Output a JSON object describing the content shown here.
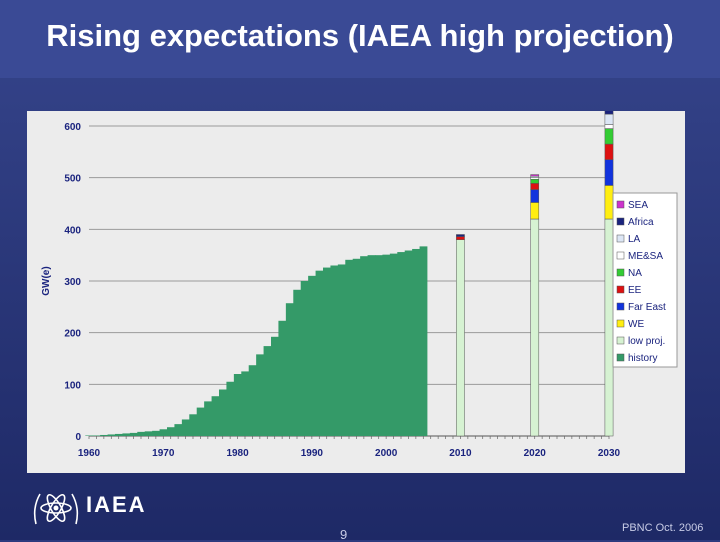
{
  "slide": {
    "title": "Rising expectations (IAEA high projection)",
    "logo_text": "IAEA",
    "page_number": "9",
    "footer_note": "PBNC Oct. 2006"
  },
  "colors": {
    "background": "#2c3a7e",
    "panel": "#ececec",
    "history": "#349a68",
    "low_proj": "#d6f2d2"
  },
  "chart_data": {
    "type": "bar",
    "title": "",
    "xlabel": "",
    "ylabel": "GW(e)",
    "xlim": [
      1960,
      2030
    ],
    "ylim": [
      0,
      600
    ],
    "yticks": [
      0,
      100,
      200,
      300,
      400,
      500,
      600
    ],
    "xticks": [
      1960,
      1970,
      1980,
      1990,
      2000,
      2010,
      2020,
      2030
    ],
    "grid": true,
    "legend_position": "right",
    "history": {
      "name": "history",
      "color": "#349a68",
      "years": [
        1960,
        1961,
        1962,
        1963,
        1964,
        1965,
        1966,
        1967,
        1968,
        1969,
        1970,
        1971,
        1972,
        1973,
        1974,
        1975,
        1976,
        1977,
        1978,
        1979,
        1980,
        1981,
        1982,
        1983,
        1984,
        1985,
        1986,
        1987,
        1988,
        1989,
        1990,
        1991,
        1992,
        1993,
        1994,
        1995,
        1996,
        1997,
        1998,
        1999,
        2000,
        2001,
        2002,
        2003,
        2004,
        2005
      ],
      "values": [
        1,
        1,
        2,
        3,
        4,
        5,
        6,
        8,
        9,
        10,
        13,
        17,
        23,
        32,
        42,
        55,
        67,
        77,
        90,
        105,
        120,
        125,
        137,
        158,
        174,
        192,
        223,
        257,
        283,
        300,
        310,
        320,
        326,
        330,
        332,
        341,
        343,
        348,
        350,
        350,
        351,
        353,
        356,
        359,
        362,
        367
      ]
    },
    "projection_years": [
      2010,
      2020,
      2030
    ],
    "stack_order": [
      "history",
      "low proj.",
      "WE",
      "Far East",
      "EE",
      "NA",
      "ME&SA",
      "LA",
      "Africa",
      "SEA"
    ],
    "projections": [
      {
        "year": 2010,
        "segments": {
          "history": 0,
          "low proj.": 380,
          "WE": 0,
          "Far East": 0,
          "EE": 6,
          "NA": 0,
          "ME&SA": 0,
          "LA": 0,
          "Africa": 4,
          "SEA": 0
        }
      },
      {
        "year": 2020,
        "segments": {
          "history": 0,
          "low proj.": 420,
          "WE": 32,
          "Far East": 25,
          "EE": 12,
          "NA": 8,
          "ME&SA": 3,
          "LA": 3,
          "Africa": 0,
          "SEA": 3
        }
      },
      {
        "year": 2030,
        "segments": {
          "history": 0,
          "low proj.": 420,
          "WE": 65,
          "Far East": 50,
          "EE": 30,
          "NA": 30,
          "ME&SA": 8,
          "LA": 20,
          "Africa": 10,
          "SEA": 0
        }
      }
    ],
    "legend": [
      {
        "label": "SEA",
        "color": "#cc33cc"
      },
      {
        "label": "Africa",
        "color": "#1a237e"
      },
      {
        "label": "LA",
        "color": "#dce6f5"
      },
      {
        "label": "ME&SA",
        "color": "#ffffff"
      },
      {
        "label": "NA",
        "color": "#33cc33"
      },
      {
        "label": "EE",
        "color": "#dd1111"
      },
      {
        "label": "Far East",
        "color": "#1133dd"
      },
      {
        "label": "WE",
        "color": "#ffee11"
      },
      {
        "label": "low proj.",
        "color": "#d6f2d2"
      },
      {
        "label": "history",
        "color": "#349a68"
      }
    ]
  }
}
